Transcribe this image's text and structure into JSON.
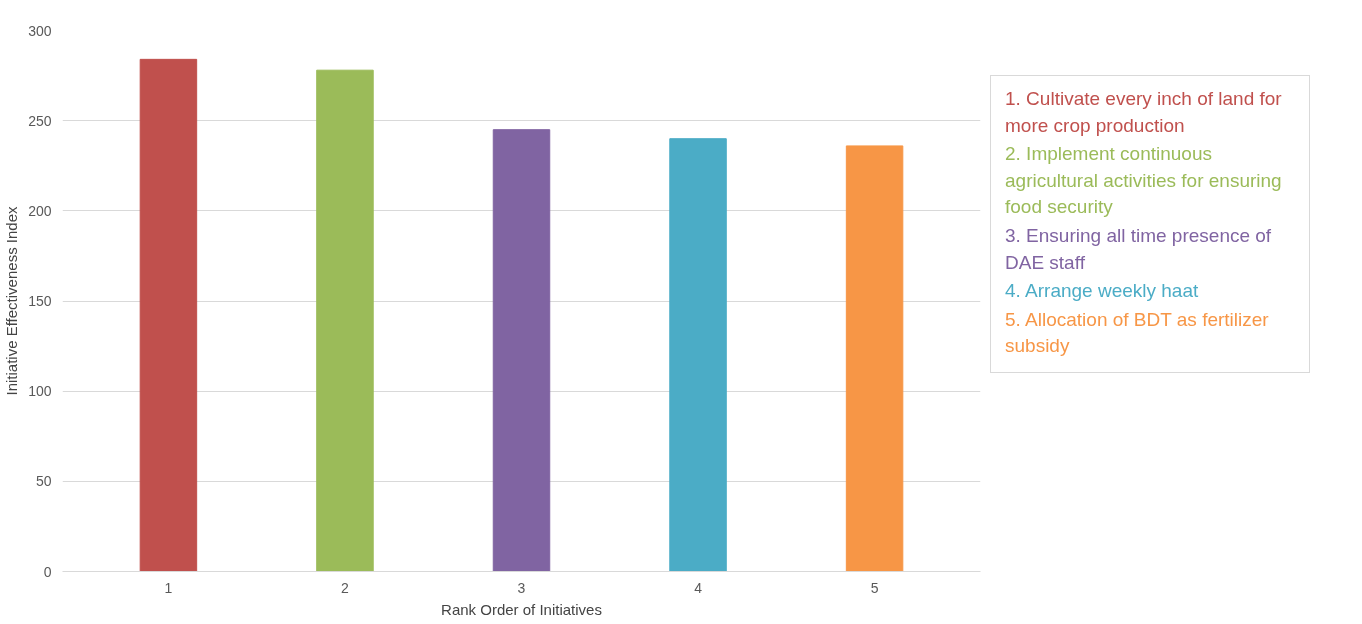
{
  "chart_data": {
    "type": "bar",
    "xlabel": "Rank Order of Initiatives",
    "ylabel": "Initiative Effectiveness Index",
    "categories": [
      "1",
      "2",
      "3",
      "4",
      "5"
    ],
    "values": [
      284,
      278,
      245,
      240,
      236
    ],
    "colors": [
      "#c0504d",
      "#9bbb59",
      "#8064a2",
      "#4bacc6",
      "#f79646"
    ],
    "ylim": [
      0,
      300
    ],
    "yticks": [
      0,
      50,
      100,
      150,
      200,
      250,
      300
    ],
    "grid": "y",
    "annotations": [
      "1. Cultivate every inch of land for more crop production",
      "2. Implement continuous agricultural activities for ensuring food security",
      "3. Ensuring all time presence of DAE staff",
      "4. Arrange weekly haat",
      "5. Allocation of BDT as fertilizer subsidy"
    ]
  }
}
